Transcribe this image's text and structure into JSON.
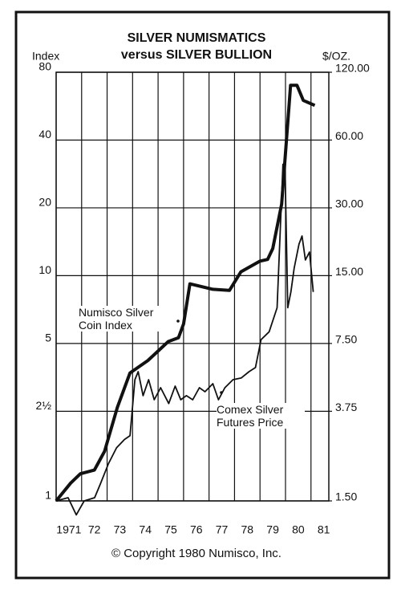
{
  "chart_data": {
    "type": "line",
    "title": "SILVER NUMISMATICS",
    "subtitle": "versus SILVER BULLION",
    "ylabel": "Index",
    "y2label": "$/OZ.",
    "footer": "© Copyright 1980 Numisco, Inc.",
    "log_scale": true,
    "grid": true,
    "xlim": [
      1971,
      1981.7
    ],
    "xticks": [
      {
        "value": 1971,
        "label": "1971"
      },
      {
        "value": 1972,
        "label": "72"
      },
      {
        "value": 1973,
        "label": "73"
      },
      {
        "value": 1974,
        "label": "74"
      },
      {
        "value": 1975,
        "label": "75"
      },
      {
        "value": 1976,
        "label": "76"
      },
      {
        "value": 1977,
        "label": "77"
      },
      {
        "value": 1978,
        "label": "78"
      },
      {
        "value": 1979,
        "label": "79"
      },
      {
        "value": 1980,
        "label": "80"
      },
      {
        "value": 1981,
        "label": "81"
      }
    ],
    "ylim": [
      1,
      80
    ],
    "yticks": [
      1,
      {
        "value": 2.5,
        "label": "2½"
      },
      5,
      10,
      20,
      40,
      80
    ],
    "y2lim": [
      1.5,
      120
    ],
    "y2ticks": [
      {
        "value": 1.5,
        "label": "1.50"
      },
      {
        "value": 3.75,
        "label": "3.75"
      },
      {
        "value": 7.5,
        "label": "7.50"
      },
      {
        "value": 15,
        "label": "15.00"
      },
      {
        "value": 30,
        "label": "30.00"
      },
      {
        "value": 60,
        "label": "60.00"
      },
      {
        "value": 120,
        "label": "120.00"
      }
    ],
    "series": [
      {
        "name": "Numisco Silver Coin Index",
        "color": "#111111",
        "x": [
          1971.0,
          1971.57,
          1971.95,
          1972.5,
          1972.9,
          1973.4,
          1973.9,
          1974.6,
          1975.4,
          1975.8,
          1976.0,
          1976.25,
          1977.15,
          1977.8,
          1978.25,
          1979.0,
          1979.3,
          1979.5,
          1979.85,
          1980.2,
          1980.45,
          1980.7,
          1981.15
        ],
        "values": [
          1.0,
          1.2,
          1.32,
          1.37,
          1.66,
          2.6,
          3.7,
          4.2,
          5.1,
          5.3,
          6.1,
          9.2,
          8.7,
          8.6,
          10.4,
          11.6,
          11.8,
          13.2,
          20.8,
          70,
          70,
          60,
          57
        ]
      },
      {
        "name": "Comex Silver Futures Price",
        "color": "#111111",
        "axis": "y2",
        "x": [
          1971.0,
          1971.47,
          1971.79,
          1972.1,
          1972.51,
          1972.74,
          1973.05,
          1973.37,
          1973.68,
          1973.9,
          1974.09,
          1974.22,
          1974.41,
          1974.63,
          1974.85,
          1975.1,
          1975.42,
          1975.67,
          1975.89,
          1976.11,
          1976.36,
          1976.62,
          1976.84,
          1977.15,
          1977.37,
          1977.62,
          1977.94,
          1978.26,
          1978.57,
          1978.82,
          1979.04,
          1979.36,
          1979.67,
          1979.9,
          1979.99,
          1980.09,
          1980.21,
          1980.34,
          1980.53,
          1980.65,
          1980.78,
          1980.94,
          1981.09
        ],
        "values": [
          1.5,
          1.55,
          1.3,
          1.5,
          1.55,
          1.79,
          2.19,
          2.58,
          2.81,
          2.92,
          5.18,
          5.62,
          4.4,
          5.18,
          4.22,
          4.77,
          4.06,
          4.85,
          4.22,
          4.4,
          4.22,
          4.77,
          4.58,
          4.97,
          4.22,
          4.77,
          5.18,
          5.27,
          5.62,
          5.86,
          7.8,
          8.45,
          10.8,
          46.8,
          39.8,
          10.8,
          12.7,
          16.2,
          20.7,
          22.5,
          17.6,
          19.1,
          12.7
        ]
      }
    ]
  }
}
